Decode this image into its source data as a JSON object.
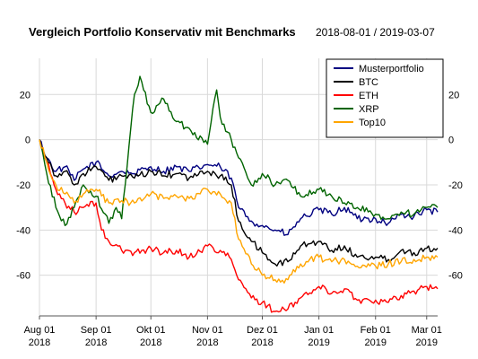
{
  "chart_data": {
    "type": "line",
    "title": "Vergleich Portfolio Konservativ mit Benchmarks",
    "subtitle": "2018-08-01 / 2019-03-07",
    "x_ticks": [
      {
        "line1": "Aug 01",
        "line2": "2018",
        "date": "2018-08-01"
      },
      {
        "line1": "Sep 01",
        "line2": "2018",
        "date": "2018-09-01"
      },
      {
        "line1": "Okt 01",
        "line2": "2018",
        "date": "2018-10-01"
      },
      {
        "line1": "Nov 01",
        "line2": "2018",
        "date": "2018-11-01"
      },
      {
        "line1": "Dez 01",
        "line2": "2018",
        "date": "2018-12-01"
      },
      {
        "line1": "Jan 01",
        "line2": "2019",
        "date": "2019-01-01"
      },
      {
        "line1": "Feb 01",
        "line2": "2019",
        "date": "2019-02-01"
      },
      {
        "line1": "Mar 01",
        "line2": "2019",
        "date": "2019-03-01"
      }
    ],
    "x_range": [
      "2018-08-01",
      "2019-03-07"
    ],
    "y_ticks": [
      20,
      0,
      -20,
      -40,
      -60
    ],
    "y_range": [
      -78,
      36
    ],
    "grid": true,
    "legend_position": "top-right",
    "series": [
      {
        "name": "Musterportfolio",
        "color": "#000080",
        "x": [
          "2018-08-01",
          "2018-08-05",
          "2018-08-10",
          "2018-08-15",
          "2018-08-20",
          "2018-08-25",
          "2018-09-01",
          "2018-09-08",
          "2018-09-15",
          "2018-09-22",
          "2018-10-01",
          "2018-10-08",
          "2018-10-15",
          "2018-10-22",
          "2018-11-01",
          "2018-11-08",
          "2018-11-14",
          "2018-11-18",
          "2018-11-25",
          "2018-12-01",
          "2018-12-08",
          "2018-12-15",
          "2018-12-22",
          "2019-01-01",
          "2019-01-08",
          "2019-01-15",
          "2019-01-22",
          "2019-02-01",
          "2019-02-08",
          "2019-02-15",
          "2019-02-22",
          "2019-03-01",
          "2019-03-07"
        ],
        "y": [
          0,
          -8,
          -14,
          -12,
          -18,
          -13,
          -10,
          -16,
          -14,
          -15,
          -12,
          -14,
          -12,
          -14,
          -11,
          -12,
          -17,
          -30,
          -36,
          -38,
          -40,
          -42,
          -35,
          -31,
          -33,
          -30,
          -35,
          -35,
          -37,
          -33,
          -34,
          -31,
          -32
        ]
      },
      {
        "name": "BTC",
        "color": "#000000",
        "x": [
          "2018-08-01",
          "2018-08-05",
          "2018-08-10",
          "2018-08-15",
          "2018-08-20",
          "2018-08-25",
          "2018-09-01",
          "2018-09-08",
          "2018-09-15",
          "2018-09-22",
          "2018-10-01",
          "2018-10-08",
          "2018-10-15",
          "2018-10-22",
          "2018-11-01",
          "2018-11-08",
          "2018-11-14",
          "2018-11-18",
          "2018-11-25",
          "2018-12-01",
          "2018-12-08",
          "2018-12-15",
          "2018-12-22",
          "2019-01-01",
          "2019-01-08",
          "2019-01-15",
          "2019-01-22",
          "2019-02-01",
          "2019-02-08",
          "2019-02-15",
          "2019-02-22",
          "2019-03-01",
          "2019-03-07"
        ],
        "y": [
          0,
          -8,
          -16,
          -14,
          -20,
          -15,
          -12,
          -18,
          -16,
          -17,
          -14,
          -16,
          -15,
          -17,
          -14,
          -16,
          -20,
          -36,
          -45,
          -50,
          -55,
          -54,
          -47,
          -45,
          -49,
          -47,
          -52,
          -52,
          -53,
          -49,
          -50,
          -48,
          -48
        ]
      },
      {
        "name": "ETH",
        "color": "#ff0000",
        "x": [
          "2018-08-01",
          "2018-08-05",
          "2018-08-10",
          "2018-08-15",
          "2018-08-20",
          "2018-08-25",
          "2018-09-01",
          "2018-09-04",
          "2018-09-08",
          "2018-09-15",
          "2018-09-22",
          "2018-10-01",
          "2018-10-08",
          "2018-10-15",
          "2018-10-22",
          "2018-11-01",
          "2018-11-08",
          "2018-11-14",
          "2018-11-18",
          "2018-11-25",
          "2018-12-01",
          "2018-12-08",
          "2018-12-15",
          "2018-12-22",
          "2019-01-01",
          "2019-01-08",
          "2019-01-15",
          "2019-01-22",
          "2019-02-01",
          "2019-02-08",
          "2019-02-15",
          "2019-02-22",
          "2019-03-01",
          "2019-03-07"
        ],
        "y": [
          0,
          -10,
          -22,
          -28,
          -32,
          -30,
          -28,
          -40,
          -45,
          -49,
          -50,
          -48,
          -50,
          -49,
          -52,
          -47,
          -49,
          -53,
          -62,
          -70,
          -72,
          -76,
          -75,
          -70,
          -65,
          -68,
          -66,
          -71,
          -71,
          -72,
          -69,
          -67,
          -65,
          -66
        ]
      },
      {
        "name": "XRP",
        "color": "#006400",
        "x": [
          "2018-08-01",
          "2018-08-05",
          "2018-08-10",
          "2018-08-15",
          "2018-08-20",
          "2018-08-25",
          "2018-09-01",
          "2018-09-08",
          "2018-09-12",
          "2018-09-15",
          "2018-09-20",
          "2018-09-22",
          "2018-09-25",
          "2018-10-01",
          "2018-10-08",
          "2018-10-15",
          "2018-10-22",
          "2018-11-01",
          "2018-11-06",
          "2018-11-08",
          "2018-11-14",
          "2018-11-18",
          "2018-11-25",
          "2018-12-01",
          "2018-12-08",
          "2018-12-15",
          "2018-12-22",
          "2019-01-01",
          "2019-01-08",
          "2019-01-15",
          "2019-01-22",
          "2019-02-01",
          "2019-02-08",
          "2019-02-15",
          "2019-02-22",
          "2019-03-01",
          "2019-03-07"
        ],
        "y": [
          0,
          -15,
          -30,
          -38,
          -30,
          -20,
          -25,
          -37,
          -30,
          -35,
          5,
          20,
          28,
          12,
          18,
          8,
          5,
          -2,
          22,
          10,
          0,
          -8,
          -20,
          -15,
          -20,
          -18,
          -25,
          -22,
          -25,
          -28,
          -30,
          -33,
          -35,
          -32,
          -33,
          -30,
          -30
        ]
      },
      {
        "name": "Top10",
        "color": "#ffa500",
        "x": [
          "2018-08-01",
          "2018-08-05",
          "2018-08-10",
          "2018-08-15",
          "2018-08-20",
          "2018-08-25",
          "2018-09-01",
          "2018-09-08",
          "2018-09-15",
          "2018-09-22",
          "2018-10-01",
          "2018-10-08",
          "2018-10-15",
          "2018-10-22",
          "2018-11-01",
          "2018-11-08",
          "2018-11-14",
          "2018-11-18",
          "2018-11-25",
          "2018-12-01",
          "2018-12-08",
          "2018-12-15",
          "2018-12-22",
          "2019-01-01",
          "2019-01-08",
          "2019-01-15",
          "2019-01-22",
          "2019-02-01",
          "2019-02-08",
          "2019-02-15",
          "2019-02-22",
          "2019-03-01",
          "2019-03-07"
        ],
        "y": [
          0,
          -10,
          -20,
          -24,
          -28,
          -24,
          -22,
          -28,
          -27,
          -28,
          -24,
          -26,
          -25,
          -26,
          -22,
          -24,
          -28,
          -44,
          -55,
          -60,
          -62,
          -62,
          -55,
          -52,
          -54,
          -53,
          -56,
          -56,
          -55,
          -54,
          -53,
          -52,
          -52
        ]
      }
    ]
  }
}
